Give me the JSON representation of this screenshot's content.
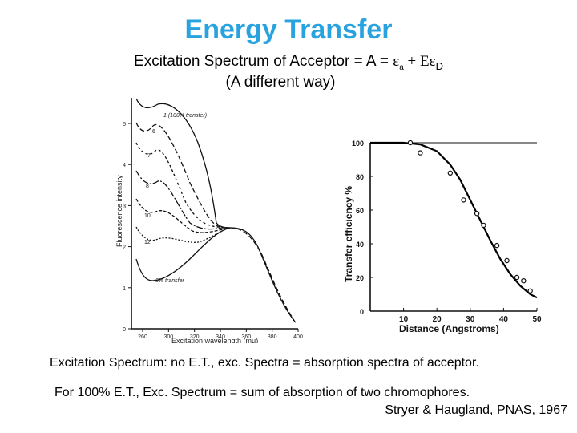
{
  "slide": {
    "title": "Energy Transfer",
    "subtitle_prefix": "Excitation Spectrum of Acceptor = A = ",
    "subtitle_formula_a": "ε",
    "subtitle_sub_a": "a",
    "subtitle_formula_mid": " + Eε",
    "subtitle_sub_d": "D",
    "subtitle_line2": "(A different way)",
    "caption1": "Excitation Spectrum: no E.T., exc. Spectra = absorption spectra of acceptor.",
    "caption2": "For 100% E.T., Exc. Spectrum = sum of absorption of two chromophores.",
    "citation": "Stryer & Haugland, PNAS, 1967"
  },
  "chart_data": [
    {
      "type": "line",
      "xlabel": "Excitation wavelength (mμ)",
      "ylabel": "Fluorescence intensity",
      "x_ticks": [
        "260",
        "300",
        "320",
        "340",
        "360",
        "380",
        "400"
      ],
      "y_ticks": [
        "0",
        "1",
        "2",
        "3",
        "4",
        "5"
      ],
      "curve_labels": [
        "1 (100% transfer)",
        "6",
        "7",
        "8",
        "10",
        "12",
        "0% transfer"
      ]
    },
    {
      "type": "scatter",
      "xlabel": "Distance (Angstroms)",
      "ylabel": "Transfer efficiency %",
      "x_ticks": [
        "10",
        "20",
        "30",
        "40",
        "50"
      ],
      "y_ticks": [
        "0",
        "20",
        "40",
        "60",
        "80",
        "100"
      ],
      "xlim": [
        0,
        50
      ],
      "ylim": [
        0,
        100
      ],
      "points": [
        [
          12,
          100
        ],
        [
          15,
          94
        ],
        [
          24,
          82
        ],
        [
          28,
          66
        ],
        [
          32,
          58
        ],
        [
          34,
          51
        ],
        [
          38,
          39
        ],
        [
          41,
          30
        ],
        [
          44,
          20
        ],
        [
          46,
          18
        ],
        [
          48,
          12
        ]
      ],
      "fit_curve": [
        [
          0,
          100
        ],
        [
          10,
          100
        ],
        [
          15,
          99
        ],
        [
          20,
          95
        ],
        [
          24,
          87
        ],
        [
          27,
          78
        ],
        [
          30,
          66
        ],
        [
          33,
          54
        ],
        [
          36,
          42
        ],
        [
          39,
          31
        ],
        [
          42,
          22
        ],
        [
          45,
          15
        ],
        [
          48,
          10
        ],
        [
          50,
          8
        ]
      ]
    }
  ]
}
